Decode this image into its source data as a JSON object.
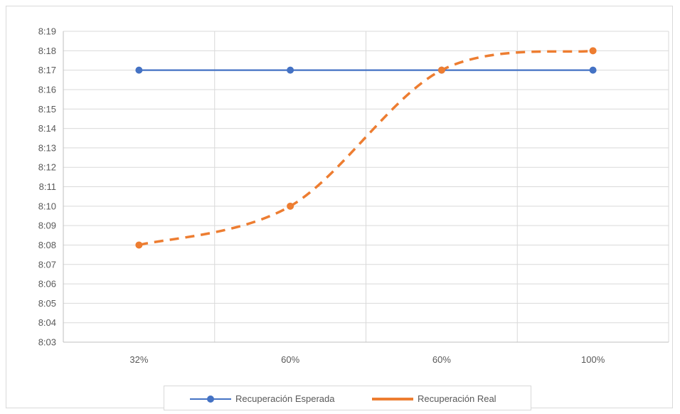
{
  "chart_data": {
    "type": "line",
    "categories": [
      "32%",
      "60%",
      "60%",
      "100%"
    ],
    "y_tick_labels": [
      "8:03",
      "8:04",
      "8:05",
      "8:06",
      "8:07",
      "8:08",
      "8:09",
      "8:10",
      "8:11",
      "8:12",
      "8:13",
      "8:14",
      "8:15",
      "8:16",
      "8:17",
      "8:18",
      "8:19"
    ],
    "y_unit": "minutes",
    "ylim": [
      483,
      499
    ],
    "grid": true,
    "legend_position": "bottom",
    "series": [
      {
        "name": "Recuperación Esperada",
        "values": [
          497,
          497,
          497,
          497
        ],
        "color": "#4472C4",
        "style": "solid",
        "marker": "circle",
        "smooth": false
      },
      {
        "name": "Recuperación Real",
        "values": [
          488,
          490,
          497,
          498
        ],
        "color": "#ED7D31",
        "style": "dashed",
        "marker": "circle",
        "smooth": true
      }
    ]
  },
  "legend": {
    "items": [
      "Recuperación Esperada",
      "Recuperación Real"
    ]
  }
}
